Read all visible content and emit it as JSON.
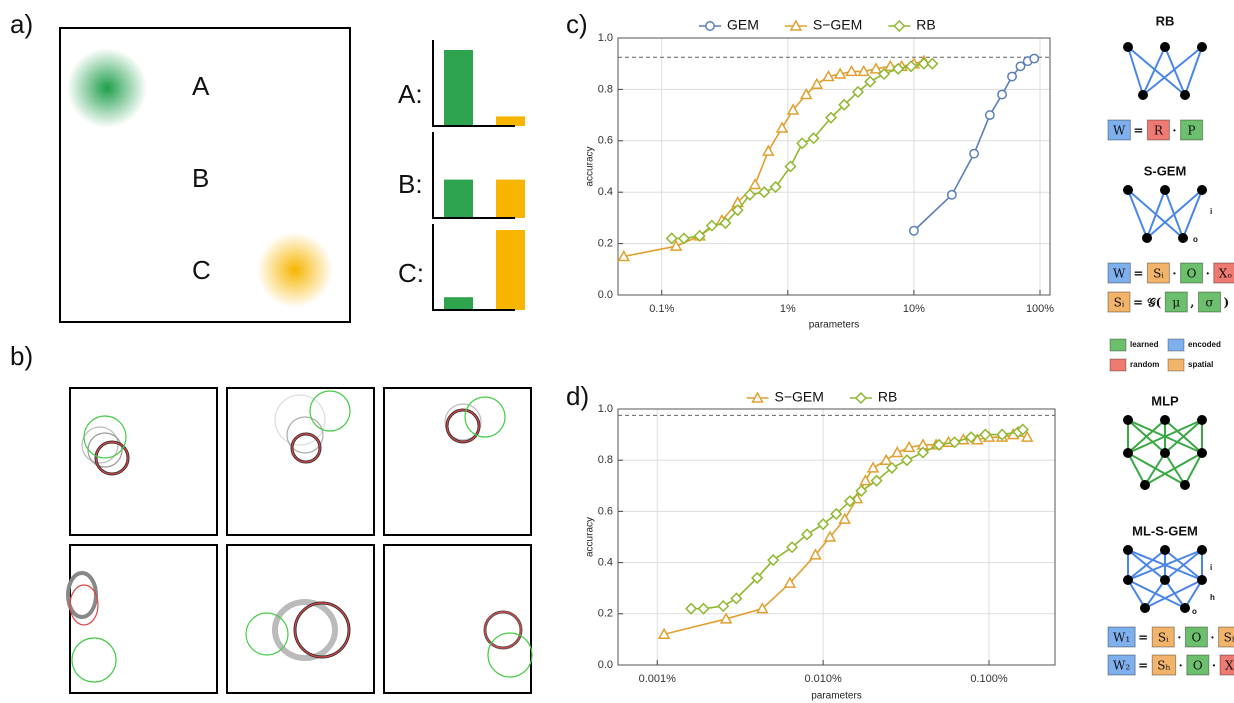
{
  "panel_labels": {
    "a": "a)",
    "b": "b)",
    "c": "c)",
    "d": "d)"
  },
  "arena_labels": [
    "A",
    "B",
    "C"
  ],
  "chart_data": [
    {
      "type": "bar",
      "title": "A:",
      "categories": [
        null,
        null
      ],
      "values": [
        0.95,
        0.12
      ],
      "colors": [
        "#2ea44f",
        "#f7b500"
      ]
    },
    {
      "type": "bar",
      "title": "B:",
      "categories": [
        null,
        null
      ],
      "values": [
        0.48,
        0.48
      ],
      "colors": [
        "#2ea44f",
        "#f7b500"
      ]
    },
    {
      "type": "bar",
      "title": "C:",
      "categories": [
        null,
        null
      ],
      "values": [
        0.16,
        1.0
      ],
      "colors": [
        "#2ea44f",
        "#f7b500"
      ]
    },
    {
      "type": "line",
      "xscale": "log",
      "grid": true,
      "legend": "top",
      "x_label": "parameters",
      "y_label": "accuracy",
      "xlim": [
        0.045,
        120
      ],
      "ylim": [
        0,
        1
      ],
      "xticks": [
        {
          "value": 0.1,
          "label": "0.1%"
        },
        {
          "value": 1,
          "label": "1%"
        },
        {
          "value": 10,
          "label": "10%"
        },
        {
          "value": 100,
          "label": "100%"
        }
      ],
      "yticks": [
        {
          "value": 0,
          "label": "0.0"
        },
        0.2,
        0.4,
        0.6,
        0.8,
        {
          "value": 1,
          "label": "1.0"
        }
      ],
      "hline": 0.925,
      "series": [
        {
          "name": "GEM",
          "color": "#5b7fb5",
          "marker": "circle",
          "x": [
            10,
            20,
            30,
            40,
            50,
            60,
            70,
            80,
            90
          ],
          "values": [
            0.25,
            0.39,
            0.55,
            0.7,
            0.78,
            0.85,
            0.89,
            0.91,
            0.92
          ]
        },
        {
          "name": "S−GEM",
          "color": "#e0a030",
          "marker": "triangle",
          "x": [
            0.05,
            0.13,
            0.2,
            0.3,
            0.4,
            0.55,
            0.7,
            0.9,
            1.1,
            1.4,
            1.7,
            2.1,
            2.6,
            3.2,
            4,
            5,
            6.5,
            8,
            10,
            12
          ],
          "values": [
            0.15,
            0.19,
            0.23,
            0.29,
            0.36,
            0.43,
            0.56,
            0.65,
            0.72,
            0.78,
            0.82,
            0.85,
            0.86,
            0.87,
            0.87,
            0.88,
            0.89,
            0.89,
            0.9,
            0.91
          ]
        },
        {
          "name": "RB",
          "color": "#8fb830",
          "marker": "diamond",
          "x": [
            0.12,
            0.15,
            0.2,
            0.25,
            0.32,
            0.4,
            0.5,
            0.65,
            0.8,
            1.05,
            1.3,
            1.6,
            2.2,
            2.8,
            3.6,
            4.5,
            5.8,
            7.5,
            9.5,
            12,
            14
          ],
          "values": [
            0.22,
            0.22,
            0.23,
            0.27,
            0.28,
            0.33,
            0.39,
            0.4,
            0.42,
            0.5,
            0.59,
            0.61,
            0.69,
            0.74,
            0.79,
            0.83,
            0.86,
            0.88,
            0.89,
            0.9,
            0.9
          ]
        }
      ]
    },
    {
      "type": "line",
      "xscale": "log",
      "grid": true,
      "legend": "top",
      "x_label": "parameters",
      "y_label": "accuracy",
      "xlim": [
        0.00058,
        0.25
      ],
      "ylim": [
        0,
        1
      ],
      "xticks": [
        {
          "value": 0.001,
          "label": "0.001%"
        },
        {
          "value": 0.01,
          "label": "0.010%"
        },
        {
          "value": 0.1,
          "label": "0.100%"
        }
      ],
      "yticks": [
        {
          "value": 0,
          "label": "0.0"
        },
        0.2,
        0.4,
        0.6,
        0.8,
        {
          "value": 1,
          "label": "1.0"
        }
      ],
      "hline": 0.975,
      "series": [
        {
          "name": "S−GEM",
          "color": "#e0a030",
          "marker": "triangle",
          "x": [
            0.0011,
            0.0026,
            0.0043,
            0.0063,
            0.009,
            0.011,
            0.0135,
            0.016,
            0.018,
            0.02,
            0.024,
            0.028,
            0.033,
            0.04,
            0.048,
            0.057,
            0.07,
            0.085,
            0.1,
            0.12,
            0.14,
            0.17
          ],
          "values": [
            0.12,
            0.18,
            0.22,
            0.32,
            0.43,
            0.5,
            0.57,
            0.65,
            0.72,
            0.77,
            0.8,
            0.83,
            0.85,
            0.86,
            0.86,
            0.87,
            0.88,
            0.88,
            0.89,
            0.89,
            0.9,
            0.89
          ]
        },
        {
          "name": "RB",
          "color": "#8fb830",
          "marker": "diamond",
          "x": [
            0.0016,
            0.0019,
            0.0025,
            0.003,
            0.004,
            0.005,
            0.0065,
            0.008,
            0.01,
            0.012,
            0.0145,
            0.017,
            0.021,
            0.026,
            0.032,
            0.04,
            0.05,
            0.062,
            0.078,
            0.095,
            0.12,
            0.15,
            0.16
          ],
          "values": [
            0.22,
            0.22,
            0.23,
            0.26,
            0.34,
            0.41,
            0.46,
            0.51,
            0.55,
            0.59,
            0.64,
            0.68,
            0.72,
            0.77,
            0.8,
            0.83,
            0.86,
            0.87,
            0.89,
            0.9,
            0.9,
            0.91,
            0.92
          ]
        }
      ]
    }
  ],
  "diagrams": [
    {
      "title": "RB",
      "equations": [
        [
          {
            "text": "W",
            "kind": "encoded"
          },
          "=",
          {
            "text": "R",
            "kind": "random"
          },
          "·",
          {
            "text": "P",
            "kind": "learned"
          }
        ]
      ]
    },
    {
      "title": "S-GEM",
      "node_labels": [
        "i",
        "o"
      ],
      "equations": [
        [
          {
            "text": "W",
            "kind": "encoded"
          },
          "=",
          {
            "text": "Sᵢ",
            "kind": "spatial"
          },
          "·",
          {
            "text": "O",
            "kind": "learned"
          },
          "·",
          {
            "text": "Xₒ",
            "kind": "random"
          }
        ],
        [
          {
            "text": "Sᵢ",
            "kind": "spatial"
          },
          "=",
          "𝒢(",
          {
            "text": "μ",
            "kind": "learned"
          },
          ",",
          {
            "text": "σ",
            "kind": "learned"
          },
          ")"
        ]
      ]
    },
    {
      "title": "MLP"
    },
    {
      "title": "ML-S-GEM",
      "node_labels": [
        "i",
        "h",
        "o"
      ],
      "equations": [
        [
          {
            "text": "W₁",
            "kind": "encoded"
          },
          "=",
          {
            "text": "Sᵢ",
            "kind": "spatial"
          },
          "·",
          {
            "text": "O",
            "kind": "learned"
          },
          "·",
          {
            "text": "Sₕ",
            "kind": "spatial"
          }
        ],
        [
          {
            "text": "W₂",
            "kind": "encoded"
          },
          "=",
          {
            "text": "Sₕ",
            "kind": "spatial"
          },
          "·",
          {
            "text": "O",
            "kind": "learned"
          },
          "·",
          {
            "text": "Xₒ",
            "kind": "random"
          }
        ]
      ]
    }
  ],
  "diagram_legend": [
    {
      "label": "learned",
      "kind": "learned",
      "color": "#6cbf6c"
    },
    {
      "label": "encoded",
      "kind": "encoded",
      "color": "#7fb0ee"
    },
    {
      "label": "random",
      "kind": "random",
      "color": "#ef7a72"
    },
    {
      "label": "spatial",
      "kind": "spatial",
      "color": "#f2b36a"
    }
  ]
}
